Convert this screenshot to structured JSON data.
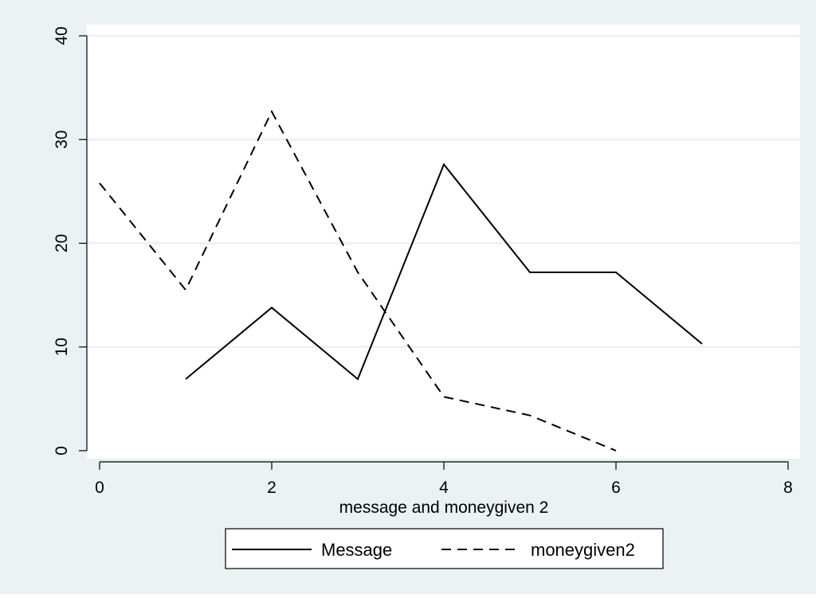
{
  "chart_data": {
    "type": "line",
    "title": "",
    "xlabel": "message and moneygiven 2",
    "ylabel": "",
    "xlim": [
      0,
      8
    ],
    "ylim": [
      0,
      40
    ],
    "x_ticks": [
      0,
      2,
      4,
      6,
      8
    ],
    "y_ticks": [
      0,
      10,
      20,
      30,
      40
    ],
    "grid": true,
    "legend_position": "bottom",
    "series": [
      {
        "name": "Message",
        "style": "solid",
        "color": "#000000",
        "points": [
          [
            1,
            6.9
          ],
          [
            2,
            13.8
          ],
          [
            3,
            6.9
          ],
          [
            4,
            27.6
          ],
          [
            5,
            17.2
          ],
          [
            6,
            17.2
          ],
          [
            7,
            10.3
          ]
        ]
      },
      {
        "name": "moneygiven2",
        "style": "dashed",
        "color": "#000000",
        "points": [
          [
            0,
            25.8
          ],
          [
            1,
            15.5
          ],
          [
            2,
            32.7
          ],
          [
            3,
            17.2
          ],
          [
            4,
            5.2
          ],
          [
            5,
            3.4
          ],
          [
            6,
            0
          ]
        ]
      }
    ]
  },
  "colors": {
    "outer_background": "#eaf2f3",
    "plot_background": "#ffffff",
    "gridline": "#eaf2f3",
    "line": "#000000"
  }
}
